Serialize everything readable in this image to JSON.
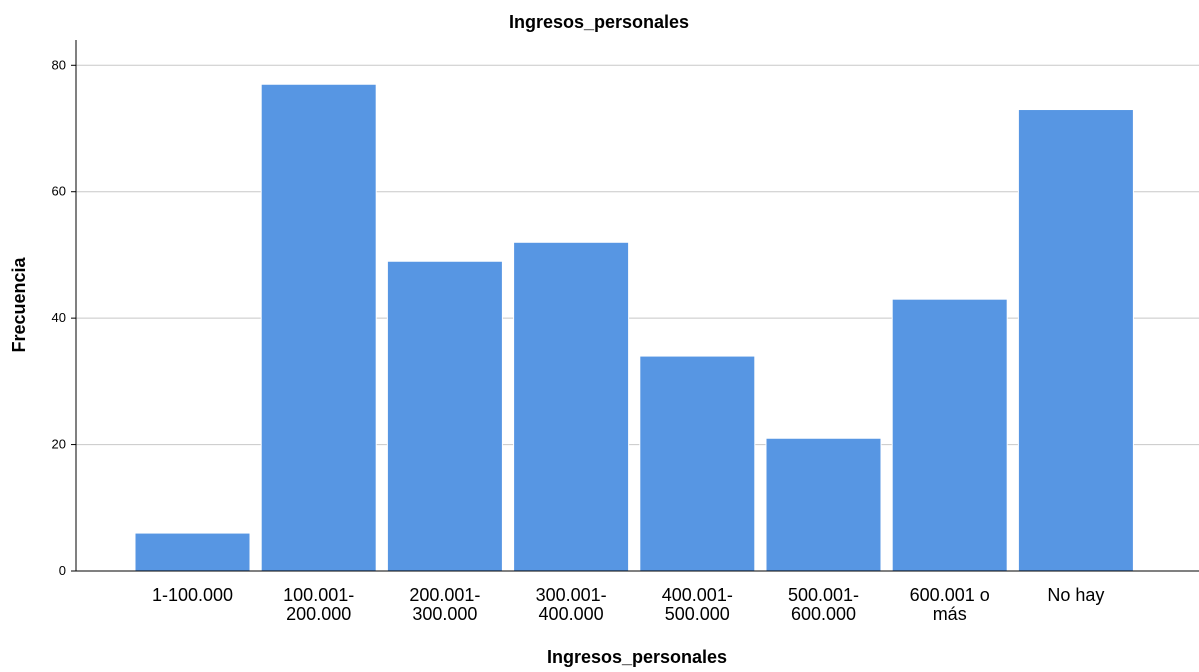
{
  "chart_data": {
    "type": "bar",
    "title": "Ingresos_personales",
    "xlabel": "Ingresos_personales",
    "ylabel": "Frecuencia",
    "categories": [
      "1-100.000",
      "100.001-\n200.000",
      "200.001-\n300.000",
      "300.001-\n400.000",
      "400.001-\n500.000",
      "500.001-\n600.000",
      "600.001 o\nmás",
      "No hay"
    ],
    "values": [
      6,
      77,
      49,
      52,
      34,
      21,
      43,
      73
    ],
    "ylim": [
      0,
      84
    ],
    "yticks": [
      0,
      20,
      40,
      60,
      80
    ],
    "grid": true,
    "bar_color": "#5796e3"
  }
}
